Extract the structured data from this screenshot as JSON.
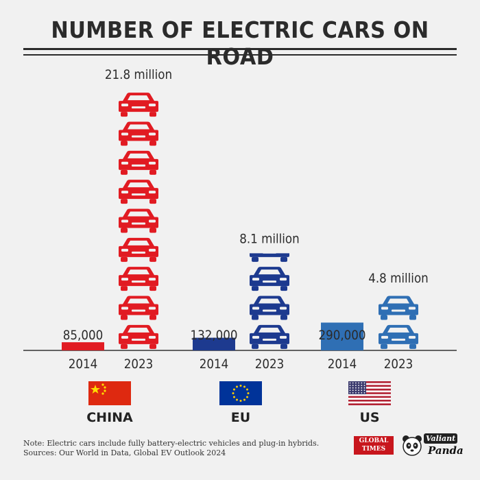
{
  "title": "NUMBER OF ELECTRIC CARS ON ROAD",
  "chart_data": {
    "type": "bar",
    "unit": "cars",
    "groups": [
      {
        "country": "CHINA",
        "flag": "china-flag",
        "color": "#e11b22",
        "bars": [
          {
            "year": "2014",
            "value": 85000,
            "label": "85,000"
          },
          {
            "year": "2023",
            "value": 21800000,
            "label": "21.8 million"
          }
        ]
      },
      {
        "country": "EU",
        "flag": "eu-flag",
        "color": "#1d3a8f",
        "bars": [
          {
            "year": "2014",
            "value": 132000,
            "label": "132,000"
          },
          {
            "year": "2023",
            "value": 8100000,
            "label": "8.1 million"
          }
        ]
      },
      {
        "country": "US",
        "flag": "us-flag",
        "color": "#2f6fb4",
        "bars": [
          {
            "year": "2014",
            "value": 290000,
            "label": "290,000"
          },
          {
            "year": "2023",
            "value": 4800000,
            "label": "4.8 million"
          }
        ]
      }
    ]
  },
  "notes": {
    "line1": "Note: Electric cars include fully battery-electric vehicles and plug-in hybrids.",
    "line2": "Sources: Our World in Data, Global EV Outlook 2024"
  },
  "logos": {
    "global_times_line1": "GLOBAL",
    "global_times_line2": "TIMES",
    "panda_line1": "Valiant",
    "panda_line2": "Panda"
  }
}
